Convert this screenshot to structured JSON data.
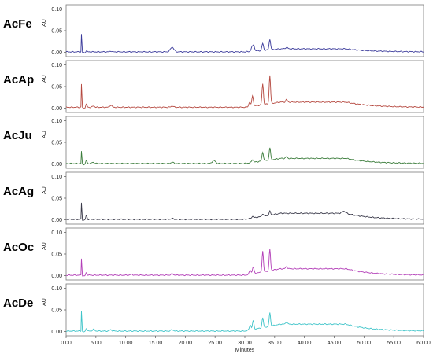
{
  "chart_data": {
    "type": "line",
    "xlabel": "Minutes",
    "xlim": [
      0,
      60
    ],
    "x_ticks": [
      0,
      5,
      10,
      15,
      20,
      25,
      30,
      35,
      40,
      45,
      50,
      55,
      60
    ],
    "x_tick_labels": [
      "0.00",
      "5.00",
      "10.00",
      "15.00",
      "20.00",
      "25.00",
      "30.00",
      "35.00",
      "40.00",
      "45.00",
      "50.00",
      "55.00",
      "60.00"
    ],
    "ylim": [
      -0.01,
      0.11
    ],
    "y_ticks": [
      0,
      0.05,
      0.1
    ],
    "y_tick_labels": [
      "0.00",
      "0.05",
      "0.10"
    ],
    "ylabel": "AU",
    "grid": false,
    "panels": [
      {
        "name": "AcFe",
        "color": "#3b3b9b",
        "baseline": 0.001,
        "drift": 0.007,
        "peaks": [
          [
            2.6,
            0.052,
            0.06
          ],
          [
            3.4,
            0.003,
            0.15
          ],
          [
            7.5,
            0.002,
            0.2
          ],
          [
            17.8,
            0.011,
            0.4
          ],
          [
            31.2,
            0.01,
            0.2
          ],
          [
            31.5,
            0.014,
            0.18
          ],
          [
            33.0,
            0.016,
            0.18
          ],
          [
            34.2,
            0.024,
            0.18
          ],
          [
            37.0,
            0.003,
            0.3
          ]
        ]
      },
      {
        "name": "AcAp",
        "color": "#b5483f",
        "baseline": 0.002,
        "drift": 0.012,
        "peaks": [
          [
            2.6,
            0.068,
            0.06
          ],
          [
            3.4,
            0.008,
            0.15
          ],
          [
            4.6,
            0.003,
            0.25
          ],
          [
            7.5,
            0.005,
            0.25
          ],
          [
            17.8,
            0.003,
            0.3
          ],
          [
            30.8,
            0.01,
            0.2
          ],
          [
            31.3,
            0.024,
            0.18
          ],
          [
            33.0,
            0.048,
            0.17
          ],
          [
            34.2,
            0.066,
            0.16
          ],
          [
            37.0,
            0.006,
            0.2
          ]
        ]
      },
      {
        "name": "AcJu",
        "color": "#3c7d3c",
        "baseline": 0.001,
        "drift": 0.012,
        "peaks": [
          [
            2.6,
            0.036,
            0.06
          ],
          [
            3.4,
            0.008,
            0.15
          ],
          [
            4.5,
            0.003,
            0.25
          ],
          [
            17.8,
            0.003,
            0.3
          ],
          [
            24.8,
            0.007,
            0.4
          ],
          [
            31.3,
            0.007,
            0.2
          ],
          [
            33.0,
            0.02,
            0.18
          ],
          [
            34.2,
            0.028,
            0.17
          ],
          [
            37.0,
            0.004,
            0.2
          ]
        ]
      },
      {
        "name": "AcAg",
        "color": "#3a3a4a",
        "baseline": 0.001,
        "drift": 0.014,
        "peaks": [
          [
            2.6,
            0.048,
            0.06
          ],
          [
            3.4,
            0.01,
            0.15
          ],
          [
            17.8,
            0.002,
            0.3
          ],
          [
            31.3,
            0.004,
            0.2
          ],
          [
            33.0,
            0.006,
            0.18
          ],
          [
            34.2,
            0.009,
            0.17
          ],
          [
            46.6,
            0.005,
            0.4
          ]
        ]
      },
      {
        "name": "AcOc",
        "color": "#b33fb8",
        "baseline": 0.001,
        "drift": 0.015,
        "peaks": [
          [
            2.6,
            0.05,
            0.06
          ],
          [
            3.4,
            0.007,
            0.15
          ],
          [
            11.0,
            0.002,
            0.3
          ],
          [
            17.8,
            0.003,
            0.3
          ],
          [
            30.9,
            0.01,
            0.2
          ],
          [
            31.4,
            0.016,
            0.18
          ],
          [
            33.0,
            0.048,
            0.16
          ],
          [
            34.2,
            0.05,
            0.16
          ],
          [
            37.0,
            0.005,
            0.2
          ]
        ]
      },
      {
        "name": "AcDe",
        "color": "#3fc4c9",
        "baseline": 0.001,
        "drift": 0.016,
        "peaks": [
          [
            2.6,
            0.06,
            0.06
          ],
          [
            3.4,
            0.008,
            0.15
          ],
          [
            4.6,
            0.004,
            0.25
          ],
          [
            7.5,
            0.003,
            0.25
          ],
          [
            17.8,
            0.003,
            0.3
          ],
          [
            30.9,
            0.012,
            0.2
          ],
          [
            31.4,
            0.02,
            0.18
          ],
          [
            33.0,
            0.022,
            0.17
          ],
          [
            34.2,
            0.032,
            0.16
          ],
          [
            37.0,
            0.005,
            0.2
          ]
        ]
      }
    ]
  }
}
